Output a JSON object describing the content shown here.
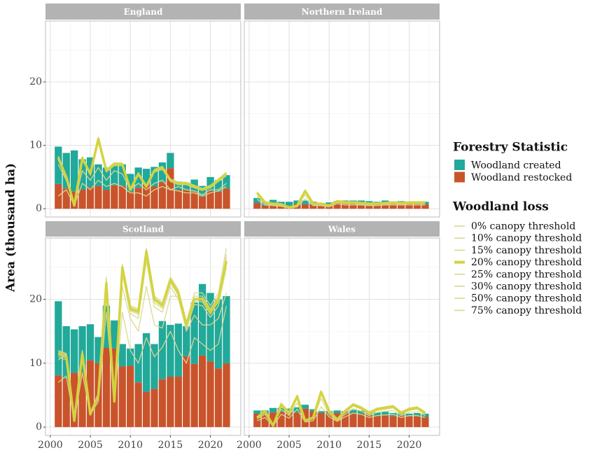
{
  "chart_data": {
    "type": "bar",
    "ylabel": "Area (thousand ha)",
    "legend_titles": [
      "Forestry Statistic",
      "Woodland loss"
    ],
    "panels": [
      "England",
      "Northern Ireland",
      "Scotland",
      "Wales"
    ],
    "x": [
      2001,
      2002,
      2003,
      2004,
      2005,
      2006,
      2007,
      2008,
      2009,
      2010,
      2011,
      2012,
      2013,
      2014,
      2015,
      2016,
      2017,
      2018,
      2019,
      2020,
      2021,
      2022
    ],
    "xlim": [
      1999.4,
      2023.8
    ],
    "ylim": [
      -1.3,
      29.6
    ],
    "xticks": [
      2000,
      2005,
      2010,
      2015,
      2020
    ],
    "yticks": [
      0,
      10,
      20
    ],
    "xticks_minor": [
      2002.5,
      2007.5,
      2012.5,
      2017.5,
      2022.5
    ],
    "yticks_minor": [
      5,
      15,
      25
    ],
    "grid": true,
    "series": [
      {
        "name": "Woodland created",
        "kind": "bar",
        "color": "#21a99a",
        "values": [
          [
            5.9,
            5.6,
            6.5,
            4.8,
            4.7,
            3.4,
            3.5,
            3.2,
            3.4,
            2.8,
            3.2,
            2.5,
            3.1,
            3.1,
            2.4,
            1.3,
            1.2,
            1.9,
            1.6,
            2.2,
            1.8,
            2.1
          ],
          [
            0.8,
            0.6,
            0.7,
            0.5,
            0.6,
            0.5,
            0.6,
            0.4,
            0.3,
            0.3,
            0.3,
            0.3,
            0.4,
            0.3,
            0.3,
            0.3,
            0.4,
            0.3,
            0.3,
            0.3,
            0.3,
            0.4
          ],
          [
            11.6,
            8.2,
            6.8,
            7.2,
            5.6,
            4.1,
            6.6,
            4.4,
            3.5,
            2.7,
            6.0,
            9.2,
            7.0,
            9.1,
            8.1,
            8.3,
            4.7,
            9.6,
            11.2,
            10.7,
            10.8,
            10.5
          ],
          [
            0.5,
            0.5,
            0.7,
            0.6,
            0.6,
            0.8,
            0.6,
            0.3,
            0.3,
            0.3,
            0.4,
            0.3,
            0.5,
            0.5,
            0.4,
            0.5,
            0.5,
            0.5,
            0.4,
            0.4,
            0.5,
            0.5
          ]
        ]
      },
      {
        "name": "Woodland restocked",
        "kind": "bar",
        "color": "#c9542b",
        "values": [
          [
            3.9,
            3.2,
            2.7,
            3.0,
            3.4,
            3.6,
            3.0,
            3.7,
            3.6,
            2.7,
            3.3,
            3.8,
            3.5,
            4.2,
            6.4,
            3.0,
            2.9,
            2.7,
            2.0,
            2.8,
            2.7,
            3.2
          ],
          [
            0.9,
            0.5,
            0.7,
            0.6,
            0.5,
            0.8,
            0.7,
            0.7,
            0.6,
            0.7,
            0.9,
            1.0,
            0.9,
            1.0,
            0.9,
            0.8,
            0.9,
            0.8,
            0.9,
            0.8,
            0.8,
            0.7
          ],
          [
            8.1,
            7.6,
            8.5,
            8.6,
            10.5,
            10.0,
            12.4,
            12.3,
            9.5,
            9.6,
            7.0,
            5.5,
            6.0,
            7.5,
            7.9,
            7.9,
            11.1,
            9.9,
            11.2,
            10.3,
            9.2,
            10.0
          ],
          [
            2.1,
            2.1,
            2.3,
            2.4,
            2.3,
            2.3,
            2.9,
            2.5,
            2.2,
            2.2,
            2.2,
            2.2,
            2.2,
            2.1,
            1.9,
            1.8,
            1.9,
            1.7,
            1.8,
            1.7,
            1.7,
            1.6
          ]
        ]
      },
      {
        "name": "0% canopy threshold",
        "kind": "line",
        "color": "#d9d98f",
        "values": [
          [
            8.3,
            5.2,
            0.6,
            8.2,
            5.7,
            11.3,
            6.2,
            7.3,
            7.2,
            3.2,
            5.7,
            3.7,
            6.2,
            6.7,
            4.7,
            4.2,
            4.2,
            3.7,
            3.2,
            3.7,
            4.7,
            5.8
          ],
          [
            2.7,
            1.1,
            0.9,
            0.8,
            0.3,
            0.6,
            3.0,
            0.9,
            0.9,
            0.6,
            1.3,
            1.1,
            1.1,
            1.0,
            0.9,
            0.9,
            1.0,
            1.1,
            1.0,
            1.1,
            1.1,
            1.1
          ],
          [
            12.0,
            11.5,
            1.2,
            12.0,
            2.2,
            5.3,
            23.5,
            4.3,
            25.5,
            19.0,
            18.5,
            28.0,
            20.5,
            19.5,
            23.5,
            21.5,
            16.5,
            21.0,
            21.0,
            19.0,
            21.0,
            28.0
          ],
          [
            1.6,
            2.7,
            0.3,
            3.8,
            2.4,
            5.0,
            1.1,
            1.6,
            5.7,
            2.7,
            1.3,
            2.7,
            3.7,
            3.2,
            2.4,
            3.0,
            3.2,
            3.4,
            2.4,
            3.0,
            3.2,
            2.4
          ]
        ]
      },
      {
        "name": "10% canopy threshold",
        "kind": "line",
        "color": "#d9d98f",
        "values": [
          [
            8.2,
            5.1,
            0.6,
            8.1,
            5.6,
            11.2,
            6.1,
            7.2,
            7.1,
            3.1,
            5.6,
            3.6,
            6.1,
            6.6,
            4.6,
            4.1,
            4.1,
            3.6,
            3.1,
            3.6,
            4.6,
            5.7
          ],
          [
            2.6,
            1.1,
            0.8,
            0.8,
            0.2,
            0.6,
            2.9,
            0.9,
            0.8,
            0.6,
            1.3,
            1.0,
            1.1,
            1.0,
            0.8,
            0.9,
            1.0,
            1.0,
            1.0,
            1.0,
            1.1,
            1.1
          ],
          [
            11.8,
            11.3,
            1.1,
            11.8,
            2.1,
            5.2,
            23.0,
            4.2,
            25.3,
            18.8,
            18.3,
            27.8,
            20.3,
            19.3,
            23.3,
            21.3,
            16.3,
            20.5,
            20.5,
            18.5,
            20.5,
            27.0
          ],
          [
            1.6,
            2.6,
            0.3,
            3.7,
            2.3,
            4.9,
            1.1,
            1.6,
            5.6,
            2.6,
            1.3,
            2.6,
            3.6,
            3.1,
            2.3,
            2.9,
            3.1,
            3.3,
            2.3,
            2.9,
            3.1,
            2.3
          ]
        ]
      },
      {
        "name": "15% canopy threshold",
        "kind": "line",
        "color": "#d9d98f",
        "values": [
          [
            8.1,
            5.0,
            0.5,
            8.0,
            5.6,
            11.1,
            6.0,
            7.1,
            7.1,
            3.1,
            5.5,
            3.5,
            6.0,
            6.5,
            4.6,
            4.0,
            4.0,
            3.5,
            3.0,
            3.5,
            4.5,
            5.6
          ],
          [
            2.6,
            1.0,
            0.8,
            0.7,
            0.2,
            0.5,
            2.9,
            0.8,
            0.8,
            0.5,
            1.2,
            1.0,
            1.0,
            0.9,
            0.8,
            0.8,
            0.9,
            1.0,
            0.9,
            1.0,
            1.0,
            1.0
          ],
          [
            11.6,
            11.1,
            1.0,
            11.6,
            2.0,
            5.1,
            22.8,
            4.1,
            25.1,
            18.6,
            18.1,
            27.6,
            20.1,
            19.1,
            23.1,
            21.1,
            16.1,
            20.2,
            20.2,
            18.2,
            20.2,
            26.5
          ],
          [
            1.5,
            2.6,
            0.2,
            3.6,
            2.2,
            4.8,
            1.0,
            1.5,
            5.5,
            2.5,
            1.2,
            2.5,
            3.5,
            3.0,
            2.2,
            2.8,
            3.0,
            3.2,
            2.2,
            2.8,
            3.0,
            2.2
          ]
        ]
      },
      {
        "name": "20% canopy threshold",
        "kind": "line",
        "color": "#d3d33c",
        "highlight": true,
        "values": [
          [
            8.0,
            5.0,
            0.5,
            8.0,
            5.5,
            11.0,
            6.0,
            7.0,
            7.0,
            3.0,
            5.5,
            3.5,
            6.0,
            6.5,
            4.5,
            4.0,
            4.0,
            3.5,
            3.0,
            3.5,
            4.5,
            5.5
          ],
          [
            2.5,
            1.0,
            0.8,
            0.7,
            0.2,
            0.5,
            2.8,
            0.8,
            0.8,
            0.5,
            1.2,
            1.0,
            1.0,
            0.9,
            0.8,
            0.8,
            0.9,
            1.0,
            0.9,
            1.0,
            1.0,
            1.0
          ],
          [
            11.5,
            11.0,
            1.0,
            11.5,
            2.0,
            5.0,
            22.5,
            4.0,
            25.0,
            18.5,
            18.0,
            27.5,
            20.0,
            19.0,
            23.0,
            21.0,
            16.0,
            20.0,
            20.0,
            18.0,
            20.0,
            26.0
          ],
          [
            1.5,
            2.5,
            0.2,
            3.5,
            2.2,
            4.8,
            1.0,
            1.5,
            5.5,
            2.5,
            1.2,
            2.5,
            3.5,
            3.0,
            2.2,
            2.8,
            3.0,
            3.2,
            2.2,
            2.8,
            3.0,
            2.2
          ]
        ]
      },
      {
        "name": "25% canopy threshold",
        "kind": "line",
        "color": "#d9d98f",
        "values": [
          [
            7.9,
            4.9,
            0.5,
            7.9,
            5.4,
            10.9,
            5.9,
            6.9,
            6.9,
            3.0,
            5.4,
            3.4,
            5.9,
            6.4,
            4.4,
            3.9,
            3.9,
            3.4,
            2.9,
            3.4,
            4.4,
            5.4
          ],
          [
            2.4,
            1.0,
            0.7,
            0.7,
            0.2,
            0.5,
            2.7,
            0.8,
            0.7,
            0.5,
            1.2,
            0.9,
            1.0,
            0.9,
            0.8,
            0.8,
            0.9,
            0.9,
            0.9,
            0.9,
            1.0,
            1.0
          ],
          [
            11.3,
            10.8,
            1.0,
            11.3,
            2.0,
            4.9,
            22.2,
            4.0,
            24.6,
            18.2,
            17.6,
            27.0,
            19.5,
            18.6,
            22.6,
            20.6,
            15.7,
            19.7,
            19.6,
            17.7,
            19.6,
            25.5
          ],
          [
            1.5,
            2.4,
            0.2,
            3.4,
            2.1,
            4.7,
            1.0,
            1.5,
            5.4,
            2.4,
            1.2,
            2.4,
            3.4,
            2.9,
            2.1,
            2.7,
            2.9,
            3.1,
            2.1,
            2.7,
            2.9,
            2.1
          ]
        ]
      },
      {
        "name": "30% canopy threshold",
        "kind": "line",
        "color": "#d9d98f",
        "values": [
          [
            7.7,
            4.8,
            0.5,
            7.7,
            5.3,
            10.6,
            5.8,
            6.8,
            6.8,
            2.9,
            5.3,
            3.4,
            5.8,
            6.2,
            4.3,
            3.8,
            3.8,
            3.3,
            2.9,
            3.3,
            4.3,
            5.2
          ],
          [
            2.3,
            0.9,
            0.7,
            0.6,
            0.2,
            0.5,
            2.6,
            0.7,
            0.7,
            0.5,
            1.1,
            0.9,
            0.9,
            0.8,
            0.7,
            0.7,
            0.8,
            0.9,
            0.8,
            0.9,
            0.9,
            0.9
          ],
          [
            11.0,
            10.5,
            1.0,
            11.0,
            1.9,
            4.8,
            21.8,
            3.9,
            24.0,
            17.8,
            17.0,
            26.0,
            18.8,
            18.0,
            22.0,
            20.0,
            15.3,
            19.2,
            19.0,
            17.2,
            19.0,
            25.0
          ],
          [
            1.4,
            2.3,
            0.2,
            3.3,
            2.0,
            4.5,
            0.9,
            1.4,
            5.2,
            2.3,
            1.1,
            2.3,
            3.3,
            2.8,
            2.0,
            2.6,
            2.8,
            3.0,
            2.0,
            2.6,
            2.8,
            2.0
          ]
        ]
      },
      {
        "name": "50% canopy threshold",
        "kind": "line",
        "color": "#d9d98f",
        "values": [
          [
            7.0,
            4.5,
            0.8,
            6.0,
            4.5,
            6.5,
            4.5,
            6.0,
            5.5,
            3.0,
            4.0,
            3.0,
            4.0,
            4.5,
            3.0,
            3.5,
            3.0,
            2.8,
            2.2,
            3.0,
            3.0,
            4.0
          ],
          [
            2.0,
            0.8,
            0.6,
            0.5,
            0.1,
            0.4,
            2.2,
            0.6,
            0.6,
            0.4,
            1.0,
            0.8,
            0.8,
            0.7,
            0.6,
            0.7,
            0.7,
            0.8,
            0.7,
            0.8,
            0.8,
            0.8
          ],
          [
            10.5,
            11.5,
            1.0,
            10.5,
            2.0,
            4.5,
            21.0,
            4.0,
            22.0,
            17.0,
            15.0,
            22.0,
            16.0,
            15.5,
            20.5,
            20.5,
            15.0,
            17.5,
            16.0,
            16.0,
            17.0,
            21.0
          ],
          [
            1.3,
            2.0,
            0.2,
            2.8,
            1.8,
            3.8,
            0.9,
            1.3,
            4.5,
            2.0,
            1.0,
            2.0,
            2.9,
            2.5,
            1.8,
            2.3,
            2.5,
            2.6,
            1.8,
            2.3,
            2.4,
            1.8
          ]
        ]
      },
      {
        "name": "75% canopy threshold",
        "kind": "line",
        "color": "#d9d98f",
        "values": [
          [
            2.0,
            3.0,
            0.5,
            4.0,
            3.0,
            4.5,
            3.5,
            4.0,
            3.5,
            2.5,
            2.5,
            2.0,
            3.0,
            3.5,
            3.0,
            2.8,
            2.5,
            2.5,
            2.0,
            2.5,
            2.8,
            3.5
          ],
          [
            1.5,
            0.6,
            0.5,
            0.4,
            0.1,
            0.3,
            1.6,
            0.5,
            0.5,
            0.3,
            0.8,
            0.6,
            0.6,
            0.6,
            0.5,
            0.5,
            0.6,
            0.6,
            0.6,
            0.6,
            0.6,
            0.6
          ],
          [
            7.0,
            8.0,
            1.0,
            8.5,
            2.0,
            4.0,
            18.0,
            4.0,
            18.0,
            12.0,
            10.0,
            14.0,
            11.0,
            12.5,
            15.0,
            12.0,
            10.0,
            14.0,
            13.0,
            12.0,
            13.0,
            19.0
          ],
          [
            1.0,
            1.5,
            0.2,
            2.0,
            1.4,
            2.8,
            0.8,
            1.0,
            3.2,
            1.6,
            0.9,
            1.6,
            2.2,
            2.0,
            1.5,
            1.8,
            1.9,
            2.0,
            1.5,
            1.8,
            1.8,
            1.5
          ]
        ]
      }
    ]
  }
}
